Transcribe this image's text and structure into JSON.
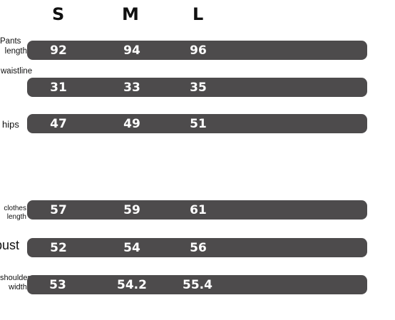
{
  "sizes": [
    "S",
    "M",
    "L"
  ],
  "rows": [
    {
      "label_line1": "Pants",
      "label_line2": "length",
      "values": [
        "92",
        "94",
        "96"
      ]
    },
    {
      "label_line1": "waistline",
      "values": [
        "31",
        "33",
        "35"
      ]
    },
    {
      "label_line1": "hips",
      "values": [
        "47",
        "49",
        "51"
      ]
    },
    {
      "label_line1": "clothes",
      "label_line2": "length",
      "values": [
        "57",
        "59",
        "61"
      ]
    },
    {
      "label_line1": "bust",
      "values": [
        "52",
        "54",
        "56"
      ]
    },
    {
      "label_line1": "shoulder",
      "label_line2": "width",
      "values": [
        "53",
        "54.2",
        "55.4"
      ]
    }
  ],
  "colors": {
    "bar": "#4d4b4c",
    "text_on_bar": "#ffffff"
  }
}
